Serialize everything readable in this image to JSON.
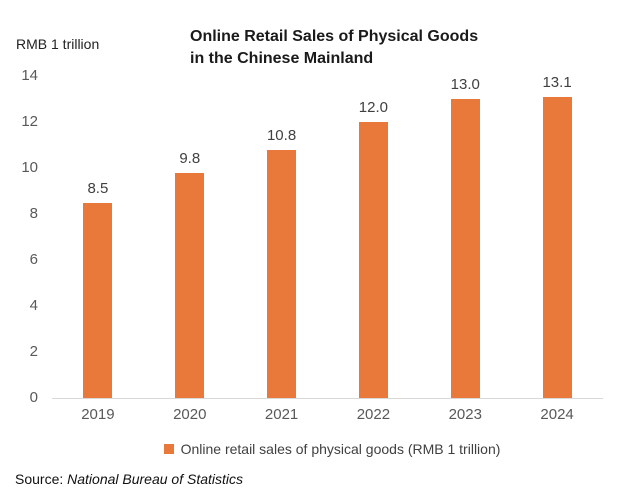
{
  "chart_data": {
    "type": "bar",
    "title": "Online Retail Sales of Physical Goods\nin the Chinese Mainland",
    "y_axis_title": "RMB 1 trillion",
    "categories": [
      "2019",
      "2020",
      "2021",
      "2022",
      "2023",
      "2024"
    ],
    "values": [
      8.5,
      9.8,
      10.8,
      12.0,
      13.0,
      13.1
    ],
    "data_labels": [
      "8.5",
      "9.8",
      "10.8",
      "12.0",
      "13.0",
      "13.1"
    ],
    "ylim": [
      0,
      14
    ],
    "y_ticks": [
      0,
      2,
      4,
      6,
      8,
      10,
      12,
      14
    ],
    "grid": false,
    "legend_label": "Online retail sales of physical goods (RMB 1 trillion)",
    "legend_position": "bottom",
    "source_prefix": "Source: ",
    "source_name": "National Bureau of Statistics"
  },
  "colors": {
    "bar": "#E8793A",
    "axis_text": "#595959",
    "data_label": "#404040",
    "baseline": "#D9D9D9",
    "title_text": "#1A1A1A",
    "legend_text": "#404040"
  }
}
